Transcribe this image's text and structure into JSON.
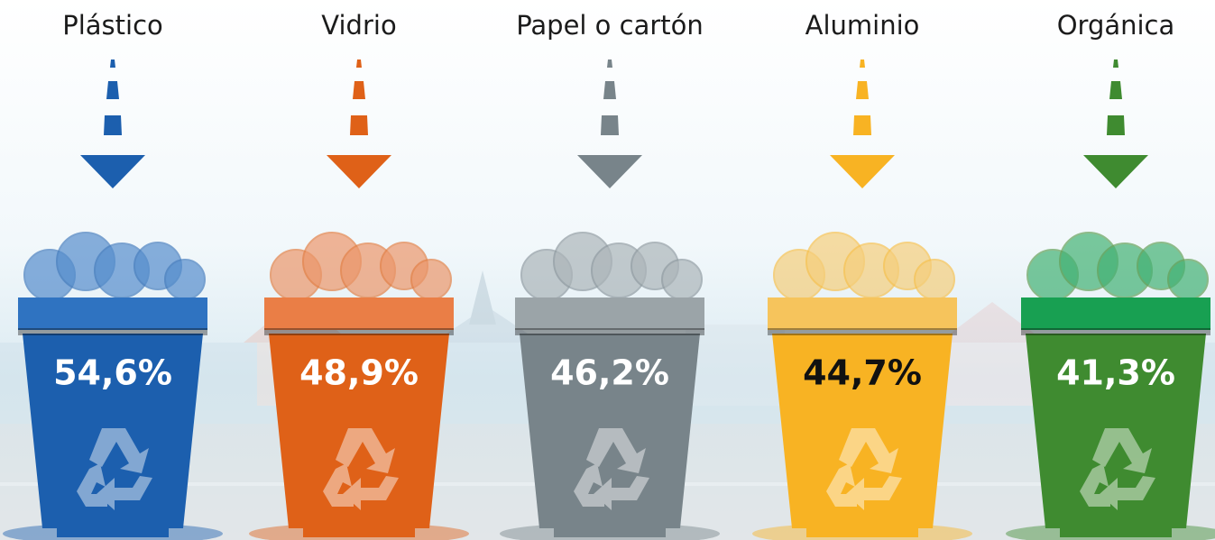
{
  "bins": [
    {
      "label": "Plástico",
      "value": "54,6%",
      "color": "#1c5fae",
      "lid_color": "#2f73c1",
      "value_color": "#ffffff"
    },
    {
      "label": "Vidrio",
      "value": "48,9%",
      "color": "#df6118",
      "lid_color": "#ea7e46",
      "value_color": "#ffffff"
    },
    {
      "label": "Papel o cartón",
      "value": "46,2%",
      "color": "#78848a",
      "lid_color": "#9ba4a8",
      "value_color": "#ffffff"
    },
    {
      "label": "Aluminio",
      "value": "44,7%",
      "color": "#f8b323",
      "lid_color": "#f6c45c",
      "value_color": "#111111"
    },
    {
      "label": "Orgánica",
      "value": "41,3%",
      "color": "#3f8b30",
      "lid_color": "#18a052",
      "value_color": "#ffffff"
    }
  ]
}
